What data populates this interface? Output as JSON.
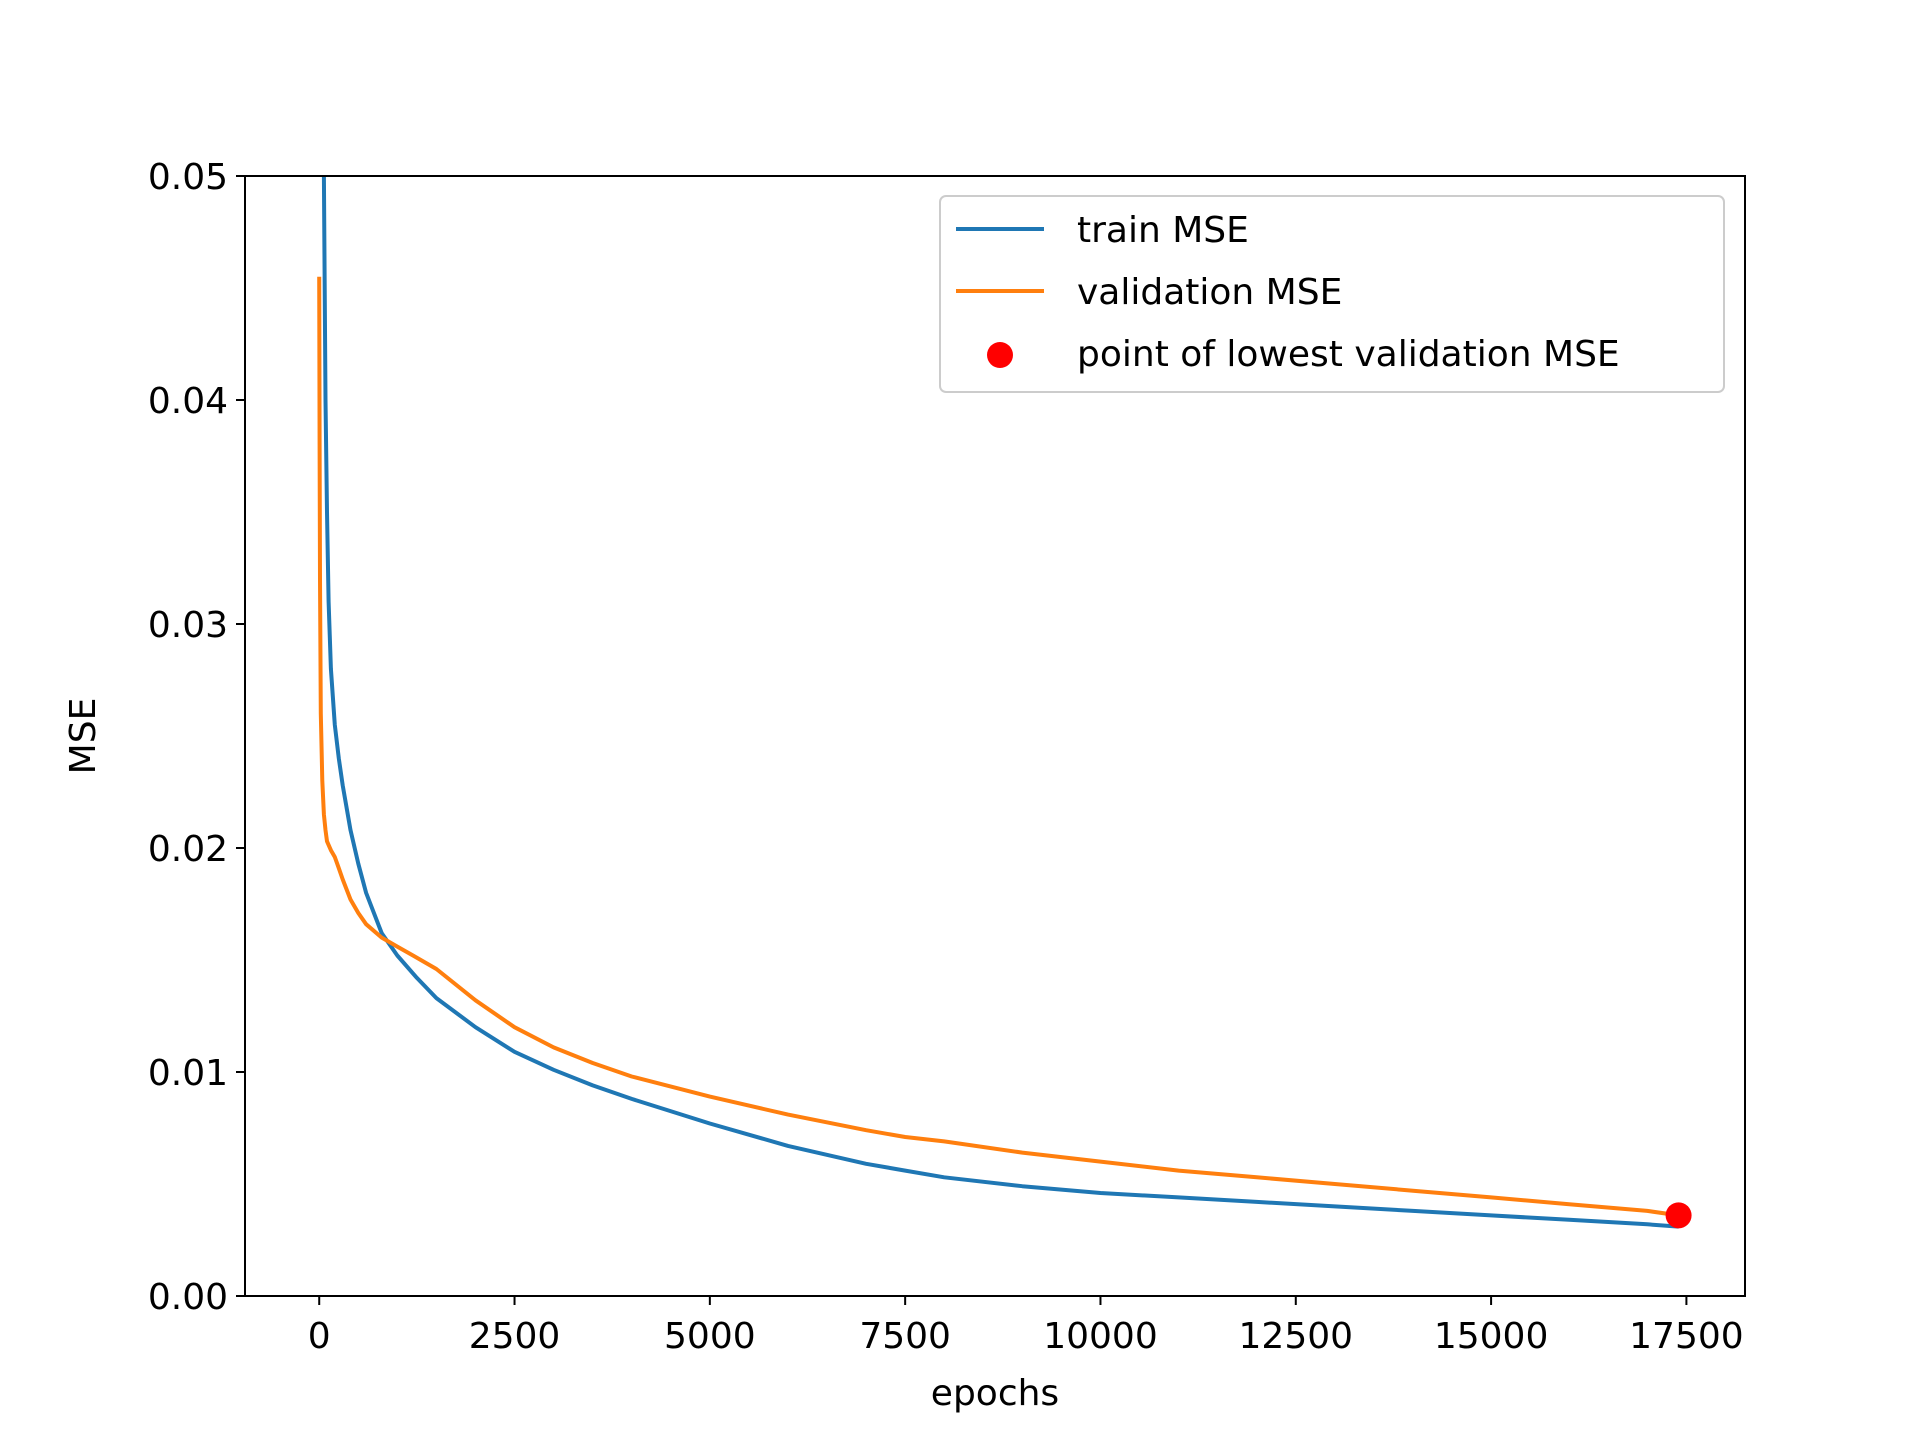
{
  "chart_data": {
    "type": "line",
    "xlabel": "epochs",
    "ylabel": "MSE",
    "xlim": [
      -950,
      18250
    ],
    "ylim": [
      0,
      0.05
    ],
    "xticks": [
      0,
      2500,
      5000,
      7500,
      10000,
      12500,
      15000,
      17500
    ],
    "xtick_labels": [
      "0",
      "2500",
      "5000",
      "7500",
      "10000",
      "12500",
      "15000",
      "17500"
    ],
    "yticks": [
      0.0,
      0.01,
      0.02,
      0.03,
      0.04,
      0.05
    ],
    "ytick_labels": [
      "0.00",
      "0.01",
      "0.02",
      "0.03",
      "0.04",
      "0.05"
    ],
    "grid": false,
    "legend_position": "top-right",
    "series": [
      {
        "name": "train MSE",
        "color": "#1f77b4",
        "kind": "line",
        "x": [
          50,
          60,
          80,
          100,
          120,
          150,
          200,
          250,
          300,
          400,
          500,
          600,
          800,
          1000,
          1250,
          1500,
          2000,
          2500,
          3000,
          3500,
          4000,
          5000,
          6000,
          7000,
          7500,
          8000,
          9000,
          10000,
          11000,
          12000,
          13000,
          14000,
          15000,
          16000,
          17000,
          17400
        ],
        "y": [
          0.065,
          0.05,
          0.04,
          0.035,
          0.031,
          0.028,
          0.0255,
          0.024,
          0.0228,
          0.0208,
          0.0193,
          0.018,
          0.0162,
          0.0152,
          0.0142,
          0.0133,
          0.012,
          0.0109,
          0.0101,
          0.0094,
          0.0088,
          0.0077,
          0.0067,
          0.0059,
          0.0056,
          0.0053,
          0.0049,
          0.0046,
          0.0044,
          0.0042,
          0.004,
          0.0038,
          0.0036,
          0.0034,
          0.0032,
          0.0031
        ]
      },
      {
        "name": "validation MSE",
        "color": "#ff7f0e",
        "kind": "line",
        "x": [
          0,
          5,
          10,
          20,
          40,
          60,
          80,
          100,
          150,
          200,
          250,
          300,
          400,
          500,
          600,
          800,
          1000,
          1200,
          1500,
          2000,
          2500,
          3000,
          3500,
          4000,
          5000,
          6000,
          7000,
          7500,
          8000,
          9000,
          10000,
          11000,
          12000,
          13000,
          14000,
          15000,
          16000,
          17000,
          17400
        ],
        "y": [
          0.0455,
          0.038,
          0.032,
          0.026,
          0.023,
          0.0215,
          0.0208,
          0.0203,
          0.0199,
          0.0196,
          0.0191,
          0.0186,
          0.0177,
          0.0171,
          0.0166,
          0.016,
          0.0156,
          0.0152,
          0.0146,
          0.0132,
          0.012,
          0.0111,
          0.0104,
          0.0098,
          0.0089,
          0.0081,
          0.0074,
          0.0071,
          0.0069,
          0.0064,
          0.006,
          0.0056,
          0.0053,
          0.005,
          0.0047,
          0.0044,
          0.0041,
          0.0038,
          0.0036
        ]
      },
      {
        "name": "point of lowest validation MSE",
        "color": "#ff0000",
        "kind": "scatter",
        "x": [
          17400
        ],
        "y": [
          0.0036
        ]
      }
    ]
  }
}
